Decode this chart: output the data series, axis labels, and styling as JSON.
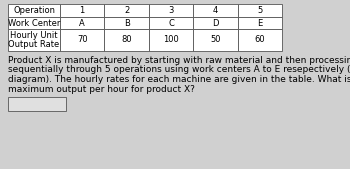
{
  "col_labels": [
    "Operation",
    "1",
    "2",
    "3",
    "4",
    "5"
  ],
  "row2_labels": [
    "Work Center",
    "A",
    "B",
    "C",
    "D",
    "E"
  ],
  "row3_label_line1": "Hourly Unit",
  "row3_label_line2": "Output Rate",
  "row3_values": [
    "70",
    "80",
    "100",
    "50",
    "60"
  ],
  "paragraph": "Product X is manufactured by starting with raw material and then processing it\nsequentially through 5 operations using work centers A to E resepectively (see\ndiagram). The hourly rates for each machine are given in the table. What is the\nmaximum output per hour for product X?",
  "bg_color": "#d0d0d0",
  "table_bg": "#ffffff",
  "header_bg": "#ffffff",
  "border_color": "#555555",
  "text_color": "#000000",
  "answer_box_color": "#e0e0e0",
  "font_size": 6.0,
  "para_font_size": 6.5
}
